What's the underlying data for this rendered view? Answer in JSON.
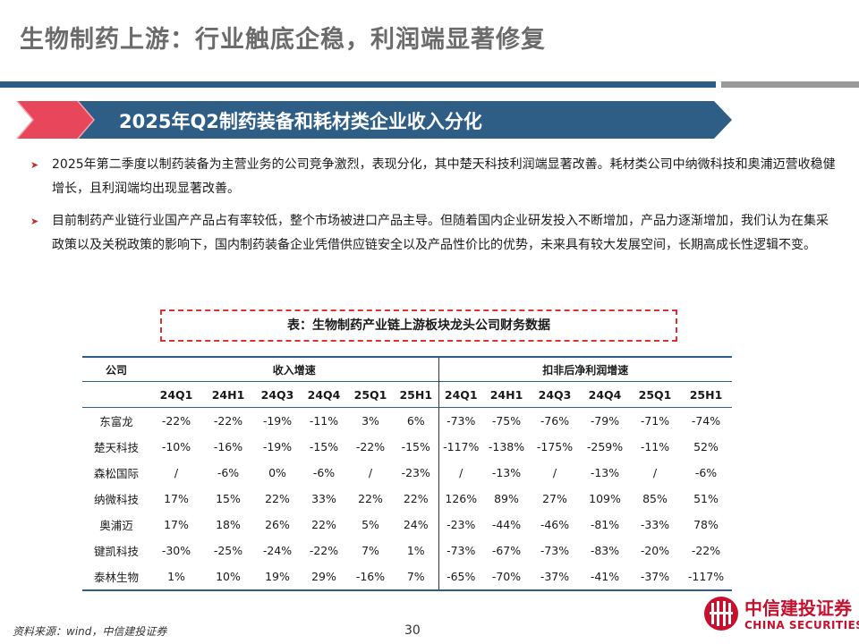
{
  "header": {
    "title": "生物制药上游：行业触底企稳，利润端显著修复"
  },
  "colors": {
    "accent_blue": "#2e5e86",
    "accent_red": "#e8465a",
    "gray": "#9a9a9a",
    "brand_red": "#c8102e"
  },
  "banner": {
    "text": "2025年Q2制药装备和耗材类企业收入分化"
  },
  "bullets": [
    {
      "icon": "arrow-bullet-icon",
      "text": "2025年第二季度以制药装备为主营业务的公司竞争激烈，表现分化，其中楚天科技利润端显著改善。耗材类公司中纳微科技和奥浦迈营收稳健增长，且利润端均出现显著改善。"
    },
    {
      "icon": "arrow-bullet-icon",
      "text": "目前制药产业链行业国产产品占有率较低，整个市场被进口产品主导。但随着国内企业研发投入不断增加，产品力逐渐增加，我们认为在集采政策以及关税政策的影响下，国内制药装备企业凭借供应链安全以及产品性价比的优势，未来具有较大发展空间，长期高成长性逻辑不变。"
    }
  ],
  "table": {
    "caption": "表：生物制药产业链上游板块龙头公司财务数据",
    "company_header": "公司",
    "group_headers": [
      "收入增速",
      "扣非后净利润增速"
    ],
    "periods": [
      "24Q1",
      "24H1",
      "24Q3",
      "24Q4",
      "25Q1",
      "25H1"
    ],
    "rows": [
      {
        "company": "东富龙",
        "revenue": [
          "-22%",
          "-22%",
          "-19%",
          "-11%",
          "3%",
          "6%"
        ],
        "profit": [
          "-73%",
          "-75%",
          "-76%",
          "-79%",
          "-71%",
          "-74%"
        ]
      },
      {
        "company": "楚天科技",
        "revenue": [
          "-10%",
          "-16%",
          "-19%",
          "-15%",
          "-22%",
          "-15%"
        ],
        "profit": [
          "-117%",
          "-138%",
          "-175%",
          "-259%",
          "-11%",
          "52%"
        ]
      },
      {
        "company": "森松国际",
        "revenue": [
          "/",
          "-6%",
          "0%",
          "-6%",
          "/",
          "-23%"
        ],
        "profit": [
          "/",
          "-13%",
          "/",
          "-13%",
          "/",
          "-6%"
        ]
      },
      {
        "company": "纳微科技",
        "revenue": [
          "17%",
          "15%",
          "22%",
          "33%",
          "22%",
          "22%"
        ],
        "profit": [
          "126%",
          "89%",
          "27%",
          "109%",
          "85%",
          "51%"
        ]
      },
      {
        "company": "奥浦迈",
        "revenue": [
          "17%",
          "18%",
          "26%",
          "22%",
          "5%",
          "24%"
        ],
        "profit": [
          "-23%",
          "-44%",
          "-46%",
          "-81%",
          "-33%",
          "78%"
        ]
      },
      {
        "company": "键凯科技",
        "revenue": [
          "-30%",
          "-25%",
          "-24%",
          "-22%",
          "7%",
          "1%"
        ],
        "profit": [
          "-73%",
          "-67%",
          "-73%",
          "-83%",
          "-20%",
          "-22%"
        ]
      },
      {
        "company": "泰林生物",
        "revenue": [
          "1%",
          "10%",
          "19%",
          "29%",
          "-16%",
          "7%"
        ],
        "profit": [
          "-65%",
          "-70%",
          "-37%",
          "-41%",
          "-37%",
          "-117%"
        ]
      }
    ]
  },
  "footer": {
    "source": "资料来源：wind，中信建投证券",
    "page": "30"
  },
  "logo": {
    "name_cn": "中信建投证券",
    "name_en": "CHINA SECURITIES",
    "icon": "china-securities-logo-icon"
  }
}
